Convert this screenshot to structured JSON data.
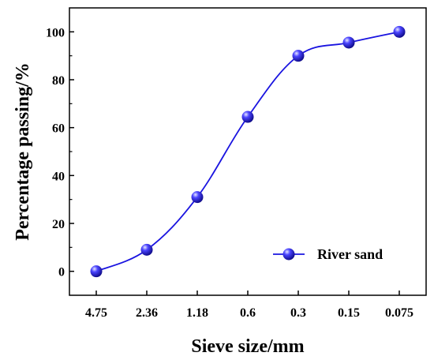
{
  "chart_data": {
    "type": "line",
    "categories": [
      "4.75",
      "2.36",
      "1.18",
      "0.6",
      "0.3",
      "0.15",
      "0.075"
    ],
    "series": [
      {
        "name": "River sand",
        "values": [
          0,
          9,
          31,
          64.5,
          90,
          95.5,
          100
        ],
        "color": "#1a14e0"
      }
    ],
    "xlabel": "Sieve size/mm",
    "ylabel": "Percentage passing/%",
    "ylim": [
      -10,
      110
    ],
    "yticks": [
      0,
      20,
      40,
      60,
      80,
      100
    ],
    "grid": false,
    "legend": "bottom-right",
    "marker": "sphere",
    "smooth": true
  }
}
